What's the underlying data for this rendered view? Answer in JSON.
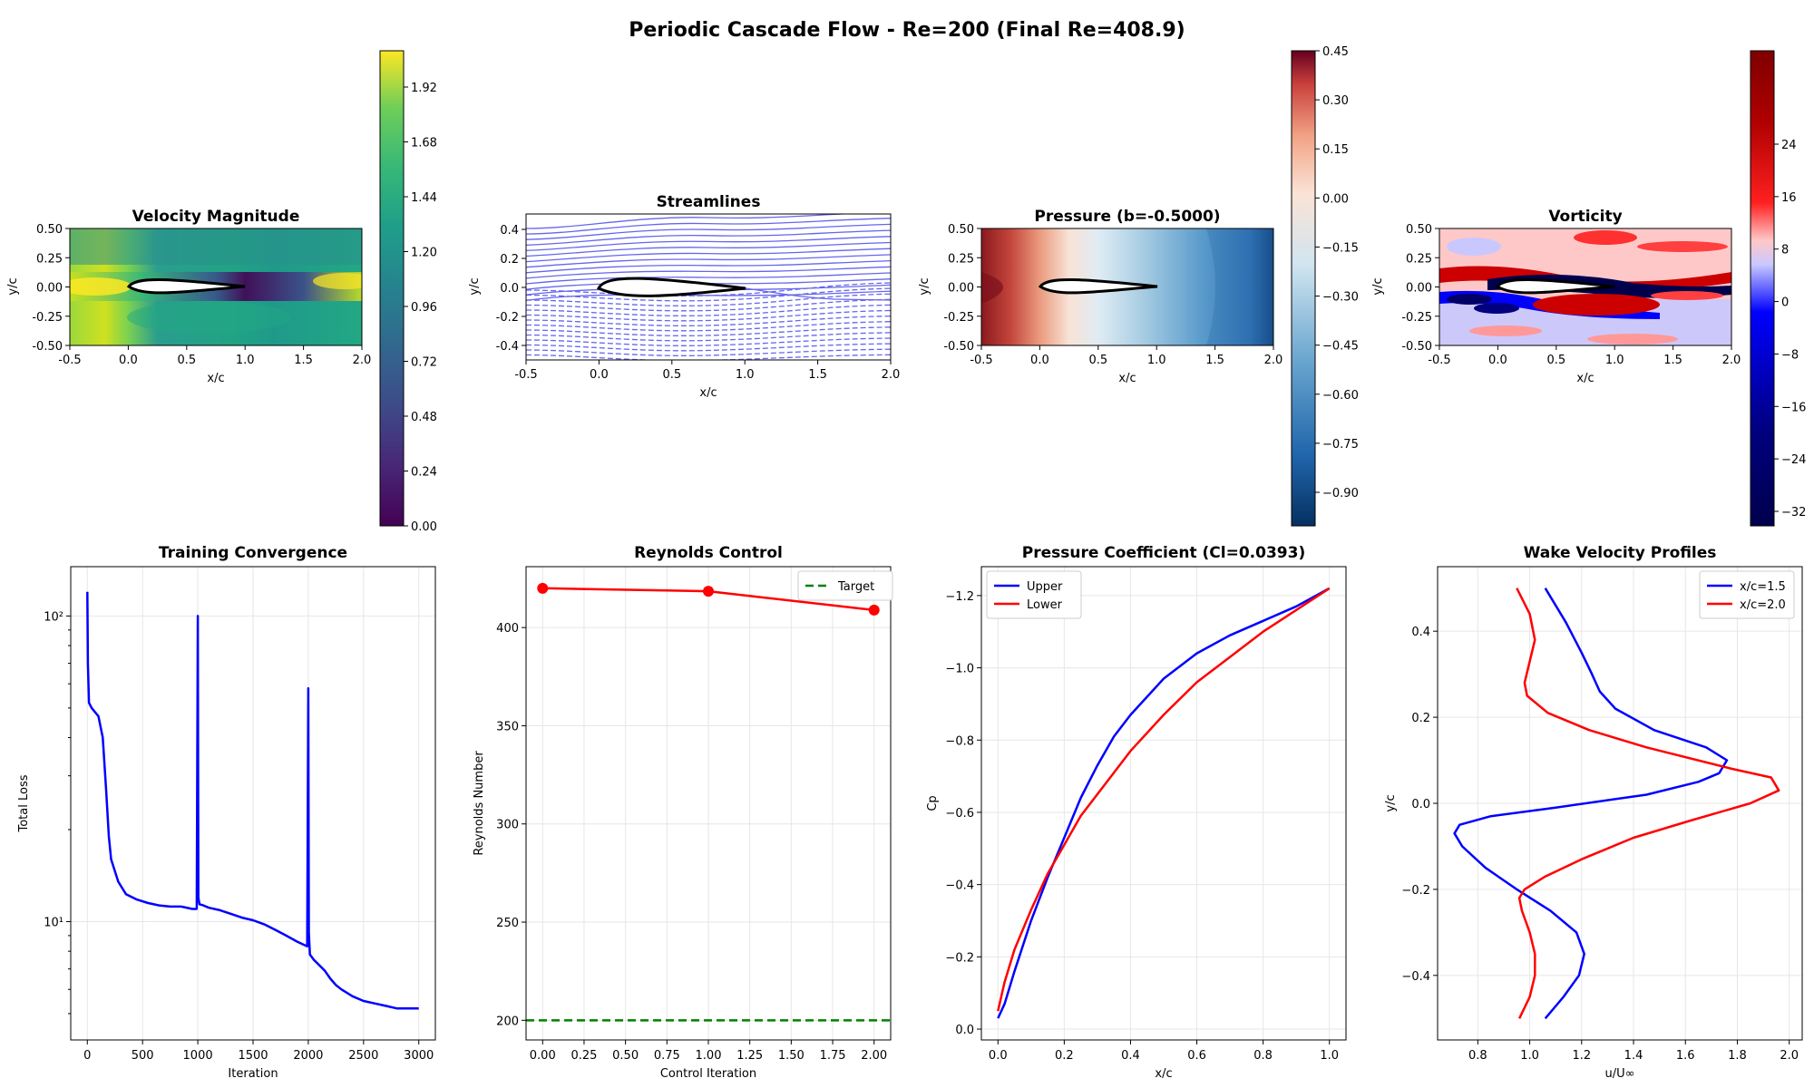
{
  "figure": {
    "suptitle": "Periodic Cascade Flow - Re=200 (Final Re=408.9)"
  },
  "panels": {
    "velocity": {
      "title": "Velocity Magnitude",
      "xlabel": "x/c",
      "ylabel": "y/c",
      "xticks": [
        "-0.5",
        "0.0",
        "0.5",
        "1.0",
        "1.5",
        "2.0"
      ],
      "yticks": [
        "0.50",
        "0.25",
        "0.00",
        "-0.25",
        "-0.50"
      ],
      "colorbar_ticks": [
        "1.92",
        "1.68",
        "1.44",
        "1.20",
        "0.96",
        "0.72",
        "0.48",
        "0.24",
        "0.00"
      ]
    },
    "streamlines": {
      "title": "Streamlines",
      "xlabel": "x/c",
      "ylabel": "y/c",
      "xticks": [
        "-0.5",
        "0.0",
        "0.5",
        "1.0",
        "1.5",
        "2.0"
      ],
      "yticks": [
        "0.4",
        "0.2",
        "0.0",
        "-0.2",
        "-0.4"
      ]
    },
    "pressure": {
      "title": "Pressure (b=-0.5000)",
      "xlabel": "x/c",
      "ylabel": "y/c",
      "xticks": [
        "-0.5",
        "0.0",
        "0.5",
        "1.0",
        "1.5",
        "2.0"
      ],
      "yticks": [
        "0.50",
        "0.25",
        "0.00",
        "-0.25",
        "-0.50"
      ],
      "colorbar_ticks": [
        "0.45",
        "0.30",
        "0.15",
        "0.00",
        "−0.15",
        "−0.30",
        "−0.45",
        "−0.60",
        "−0.75",
        "−0.90"
      ]
    },
    "vorticity": {
      "title": "Vorticity",
      "xlabel": "x/c",
      "ylabel": "y/c",
      "xticks": [
        "-0.5",
        "0.0",
        "0.5",
        "1.0",
        "1.5",
        "2.0"
      ],
      "yticks": [
        "0.50",
        "0.25",
        "0.00",
        "-0.25",
        "-0.50"
      ],
      "colorbar_ticks": [
        "24",
        "16",
        "8",
        "0",
        "−8",
        "−16",
        "−24",
        "−32"
      ]
    }
  },
  "chart_data": [
    {
      "type": "heatmap",
      "title": "Velocity Magnitude",
      "xlabel": "x/c",
      "ylabel": "y/c",
      "xlim": [
        -0.5,
        2.0
      ],
      "ylim": [
        -0.5,
        0.5
      ],
      "colorbar_range": [
        0.0,
        2.1
      ],
      "colormap": "viridis"
    },
    {
      "type": "line",
      "title": "Streamlines",
      "xlabel": "x/c",
      "ylabel": "y/c",
      "xlim": [
        -0.5,
        2.0
      ],
      "ylim": [
        -0.5,
        0.5
      ],
      "color": "#6666ee"
    },
    {
      "type": "heatmap",
      "title": "Pressure (b=-0.5000)",
      "xlabel": "x/c",
      "ylabel": "y/c",
      "xlim": [
        -0.5,
        2.0
      ],
      "ylim": [
        -0.5,
        0.5
      ],
      "colorbar_range": [
        -1.0,
        0.45
      ],
      "colormap": "RdBu_r"
    },
    {
      "type": "heatmap",
      "title": "Vorticity",
      "xlabel": "x/c",
      "ylabel": "y/c",
      "xlim": [
        -0.5,
        2.0
      ],
      "ylim": [
        -0.5,
        0.5
      ],
      "colorbar_range": [
        -34,
        28
      ],
      "colormap": "seismic"
    },
    {
      "type": "line",
      "title": "Training Convergence",
      "xlabel": "Iteration",
      "ylabel": "Total Loss",
      "xlim": [
        -150,
        3150
      ],
      "ylim": [
        4.1,
        145
      ],
      "yscale": "log",
      "xticks": [
        "0",
        "500",
        "1000",
        "1500",
        "2000",
        "2500",
        "3000"
      ],
      "yticks": [
        {
          "value": 100,
          "label": "10²"
        },
        {
          "value": 10,
          "label": "10¹"
        }
      ],
      "grid": true,
      "series": [
        {
          "color": "#0000ff",
          "x": [
            0,
            5,
            15,
            40,
            100,
            140,
            170,
            195,
            215,
            240,
            280,
            350,
            450,
            550,
            650,
            750,
            850,
            950,
            990,
            1000,
            1005,
            1015,
            1050,
            1100,
            1200,
            1300,
            1400,
            1500,
            1600,
            1700,
            1800,
            1900,
            1990,
            2000,
            2005,
            2015,
            2050,
            2100,
            2150,
            2200,
            2250,
            2300,
            2400,
            2500,
            2600,
            2700,
            2800,
            2900,
            3000
          ],
          "y": [
            120,
            70,
            52,
            50,
            47,
            40,
            27,
            19,
            16,
            15,
            13.5,
            12.3,
            11.8,
            11.5,
            11.3,
            11.2,
            11.2,
            11.0,
            11.0,
            100,
            12.0,
            11.4,
            11.3,
            11.1,
            10.9,
            10.6,
            10.3,
            10.1,
            9.8,
            9.4,
            9.0,
            8.6,
            8.3,
            58,
            9.2,
            7.8,
            7.5,
            7.2,
            6.9,
            6.5,
            6.2,
            6.0,
            5.7,
            5.5,
            5.4,
            5.3,
            5.2,
            5.2,
            5.2
          ]
        }
      ]
    },
    {
      "type": "line",
      "title": "Reynolds Control",
      "xlabel": "Control Iteration",
      "ylabel": "Reynolds Number",
      "xlim": [
        -0.1,
        2.1
      ],
      "ylim": [
        190,
        431
      ],
      "xticks": [
        "0.00",
        "0.25",
        "0.50",
        "0.75",
        "1.00",
        "1.25",
        "1.50",
        "1.75",
        "2.00"
      ],
      "yticks": [
        "200",
        "250",
        "300",
        "350",
        "400"
      ],
      "grid": true,
      "legend": "top-right",
      "series": [
        {
          "x": [
            0,
            1,
            2
          ],
          "y": [
            420,
            418.5,
            408.9
          ],
          "color": "#ff0000",
          "marker": "circle"
        },
        {
          "name": "Target",
          "y_const": 200,
          "color": "#008000",
          "style": "dashed"
        }
      ]
    },
    {
      "type": "line",
      "title": "Pressure Coefficient (Cl=0.0393)",
      "xlabel": "x/c",
      "ylabel": "Cp",
      "xlim": [
        -0.05,
        1.05
      ],
      "ylim": [
        0.03,
        -1.28
      ],
      "inverted_y": true,
      "xticks": [
        "0.0",
        "0.2",
        "0.4",
        "0.6",
        "0.8",
        "1.0"
      ],
      "yticks": [
        "0.0",
        "−0.2",
        "−0.4",
        "−0.6",
        "−0.8",
        "−1.0",
        "−1.2"
      ],
      "grid": true,
      "legend": "top-left",
      "series": [
        {
          "name": "Upper",
          "color": "#0000ff",
          "x": [
            0.0,
            0.02,
            0.05,
            0.1,
            0.15,
            0.2,
            0.25,
            0.3,
            0.35,
            0.4,
            0.5,
            0.6,
            0.7,
            0.8,
            0.9,
            1.0
          ],
          "y": [
            -0.03,
            -0.07,
            -0.16,
            -0.3,
            -0.42,
            -0.53,
            -0.64,
            -0.73,
            -0.81,
            -0.87,
            -0.97,
            -1.04,
            -1.09,
            -1.13,
            -1.17,
            -1.22
          ]
        },
        {
          "name": "Lower",
          "color": "#ff0000",
          "x": [
            0.0,
            0.02,
            0.05,
            0.1,
            0.15,
            0.2,
            0.25,
            0.3,
            0.35,
            0.4,
            0.5,
            0.6,
            0.7,
            0.8,
            0.9,
            1.0
          ],
          "y": [
            -0.05,
            -0.13,
            -0.22,
            -0.33,
            -0.43,
            -0.51,
            -0.59,
            -0.65,
            -0.71,
            -0.77,
            -0.87,
            -0.96,
            -1.03,
            -1.1,
            -1.16,
            -1.22
          ]
        }
      ]
    },
    {
      "type": "line",
      "title": "Wake Velocity Profiles",
      "xlabel": "u/U∞",
      "ylabel": "y/c",
      "xlim": [
        0.645,
        2.05
      ],
      "ylim": [
        -0.55,
        0.55
      ],
      "xticks": [
        "0.8",
        "1.0",
        "1.2",
        "1.4",
        "1.6",
        "1.8",
        "2.0"
      ],
      "yticks": [
        "0.4",
        "0.2",
        "0.0",
        "−0.2",
        "−0.4"
      ],
      "grid": true,
      "legend": "top-right",
      "series": [
        {
          "name": "x/c=1.5",
          "color": "#0000ff",
          "u": [
            1.06,
            1.13,
            1.19,
            1.21,
            1.18,
            1.08,
            0.95,
            0.83,
            0.74,
            0.71,
            0.73,
            0.85,
            1.1,
            1.45,
            1.65,
            1.73,
            1.76,
            1.68,
            1.48,
            1.33,
            1.27,
            1.24,
            1.2,
            1.14,
            1.06
          ],
          "y": [
            -0.5,
            -0.45,
            -0.4,
            -0.35,
            -0.3,
            -0.25,
            -0.2,
            -0.15,
            -0.1,
            -0.07,
            -0.05,
            -0.03,
            -0.01,
            0.02,
            0.05,
            0.07,
            0.1,
            0.13,
            0.17,
            0.22,
            0.26,
            0.3,
            0.35,
            0.42,
            0.5
          ]
        },
        {
          "name": "x/c=2.0",
          "color": "#ff0000",
          "u": [
            0.96,
            1.0,
            1.02,
            1.02,
            1.0,
            0.97,
            0.96,
            0.98,
            1.06,
            1.2,
            1.4,
            1.62,
            1.85,
            1.96,
            1.93,
            1.78,
            1.45,
            1.23,
            1.07,
            0.99,
            0.98,
            1.0,
            1.02,
            1.0,
            0.95
          ],
          "y": [
            -0.5,
            -0.45,
            -0.4,
            -0.35,
            -0.3,
            -0.25,
            -0.22,
            -0.2,
            -0.17,
            -0.13,
            -0.08,
            -0.04,
            0.0,
            0.03,
            0.06,
            0.08,
            0.13,
            0.17,
            0.21,
            0.25,
            0.28,
            0.33,
            0.38,
            0.44,
            0.5
          ]
        }
      ]
    }
  ]
}
